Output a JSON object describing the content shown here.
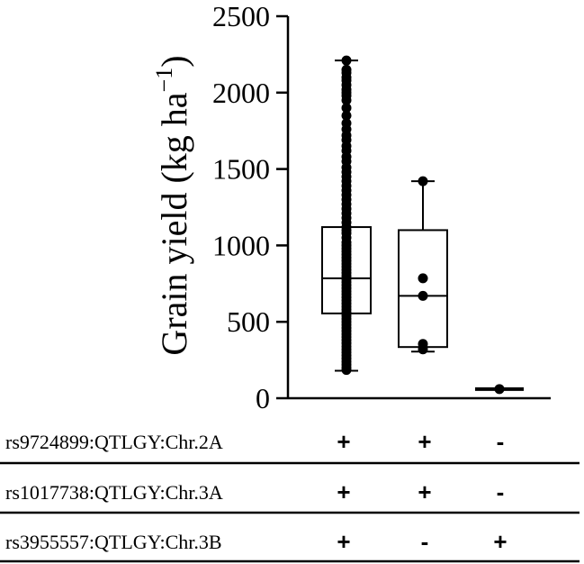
{
  "chart_data": {
    "type": "box",
    "ylabel": "Grain yield (kg ha",
    "ylabel_sup": "−1",
    "ylabel_close": ")",
    "ylim": [
      0,
      2500
    ],
    "yticks": [
      "0",
      "500",
      "1000",
      "1500",
      "2000",
      "2500"
    ],
    "grid": false,
    "groups": [
      {
        "box": {
          "min": 180,
          "q1": 555,
          "median": 785,
          "q3": 1120,
          "max": 2210
        },
        "points": [
          2210,
          2150,
          2130,
          2100,
          2080,
          2050,
          2020,
          2000,
          1980,
          1950,
          1900,
          1850,
          1800,
          1760,
          1720,
          1690,
          1650,
          1620,
          1580,
          1550,
          1510,
          1480,
          1450,
          1420,
          1390,
          1360,
          1330,
          1300,
          1270,
          1240,
          1210,
          1180,
          1150,
          1120,
          1100,
          1080,
          1050,
          1020,
          1000,
          980,
          960,
          940,
          920,
          900,
          880,
          860,
          840,
          820,
          800,
          780,
          760,
          740,
          720,
          700,
          680,
          660,
          640,
          620,
          600,
          580,
          560,
          540,
          520,
          500,
          480,
          460,
          440,
          420,
          400,
          380,
          360,
          340,
          320,
          300,
          280,
          260,
          240,
          220,
          200,
          185
        ]
      },
      {
        "box": {
          "min": 305,
          "q1": 335,
          "median": 670,
          "q3": 1100,
          "max": 1420
        },
        "points": [
          1420,
          785,
          670,
          355,
          320
        ]
      },
      {
        "box": {
          "min": 60,
          "q1": 60,
          "median": 60,
          "q3": 60,
          "max": 60
        },
        "points": [
          60
        ]
      }
    ],
    "markers": [
      {
        "label": "rs9724899:QTLGY:Chr.2A",
        "values": [
          "+",
          "+",
          "-"
        ]
      },
      {
        "label": "rs1017738:QTLGY:Chr.3A",
        "values": [
          "+",
          "+",
          "-"
        ]
      },
      {
        "label": "rs3955557:QTLGY:Chr.3B",
        "values": [
          "+",
          "-",
          "+"
        ]
      }
    ]
  }
}
